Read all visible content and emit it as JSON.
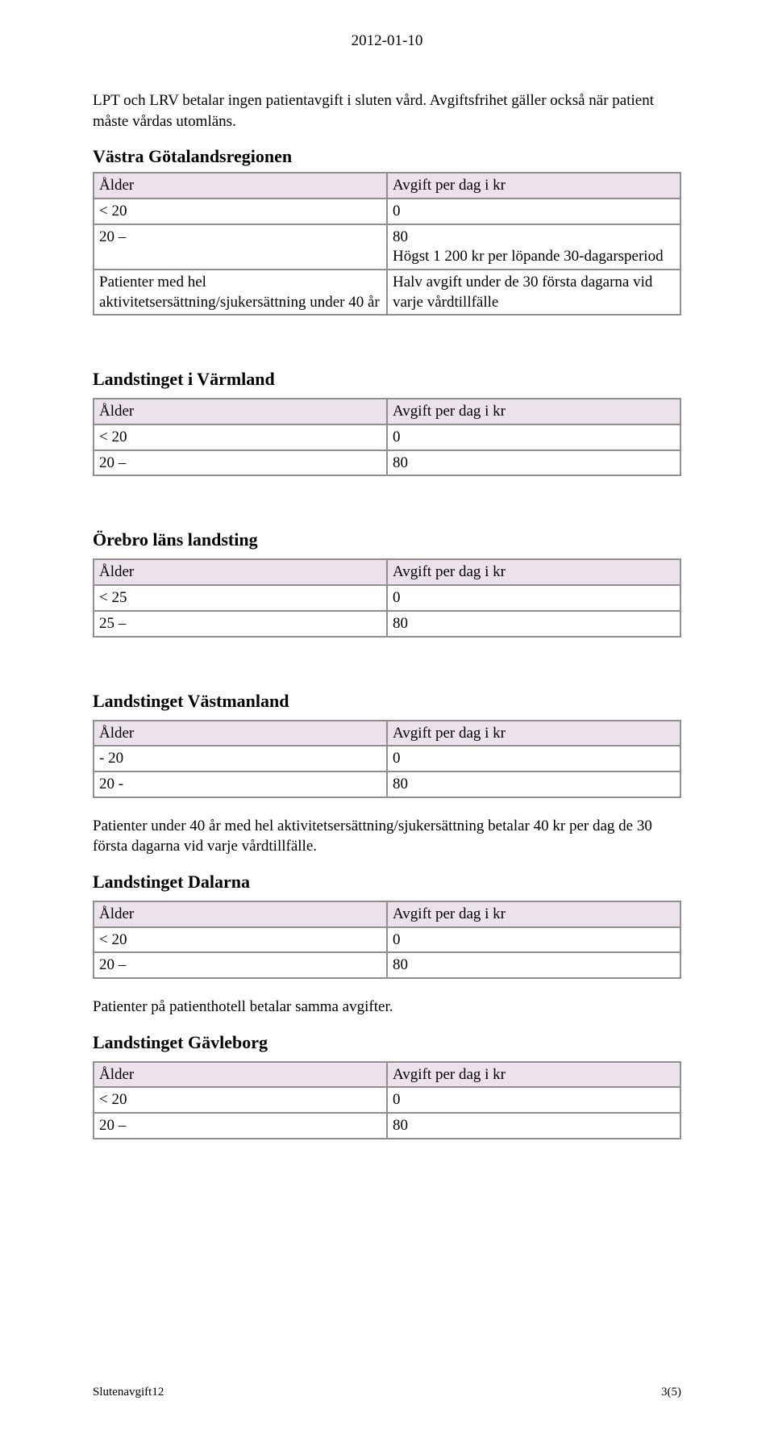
{
  "date": "2012-01-10",
  "intro_paragraph": "LPT och LRV betalar ingen patientavgift i sluten vård. Avgiftsfrihet gäller också när patient måste vårdas utomläns.",
  "tables": {
    "vastra": {
      "title": "Västra Götalandsregionen",
      "header_left": "Ålder",
      "header_right": "Avgift per dag i kr",
      "rows": [
        {
          "left": "< 20",
          "right": "0"
        },
        {
          "left": "20 –",
          "right": "80\nHögst 1 200 kr per löpande 30-dagarsperiod"
        },
        {
          "left": "Patienter med hel aktivitetsersättning/sjukersättning under 40 år",
          "right": "Halv avgift under de 30 första dagarna vid varje vårdtillfälle"
        }
      ]
    },
    "varmland": {
      "title": "Landstinget i Värmland",
      "header_left": "Ålder",
      "header_right": "Avgift per dag i kr",
      "rows": [
        {
          "left": "< 20",
          "right": "0"
        },
        {
          "left": "20 –",
          "right": "80"
        }
      ]
    },
    "orebro": {
      "title": "Örebro läns landsting",
      "header_left": "Ålder",
      "header_right": "Avgift per dag i kr",
      "rows": [
        {
          "left": "< 25",
          "right": "0"
        },
        {
          "left": "25 –",
          "right": "80"
        }
      ]
    },
    "vastmanland": {
      "title": "Landstinget Västmanland",
      "header_left": "Ålder",
      "header_right": "Avgift per dag i kr",
      "rows": [
        {
          "left": "- 20",
          "right": "0"
        },
        {
          "left": "20 -",
          "right": "80"
        }
      ]
    },
    "dalarna": {
      "title": "Landstinget Dalarna",
      "header_left": "Ålder",
      "header_right": "Avgift per dag i kr",
      "rows": [
        {
          "left": "< 20",
          "right": "0"
        },
        {
          "left": "20 –",
          "right": "80"
        }
      ]
    },
    "gavleborg": {
      "title": "Landstinget Gävleborg",
      "header_left": "Ålder",
      "header_right": "Avgift per dag i kr",
      "rows": [
        {
          "left": "< 20",
          "right": "0"
        },
        {
          "left": "20 –",
          "right": "80"
        }
      ]
    }
  },
  "vastmanland_note": "Patienter under 40 år med hel aktivitetsersättning/sjukersättning betalar 40 kr per dag de 30 första dagarna vid varje vårdtillfälle.",
  "dalarna_note": "Patienter på patienthotell betalar samma avgifter.",
  "footer_left": "Slutenavgift12",
  "footer_right": "3(5)"
}
